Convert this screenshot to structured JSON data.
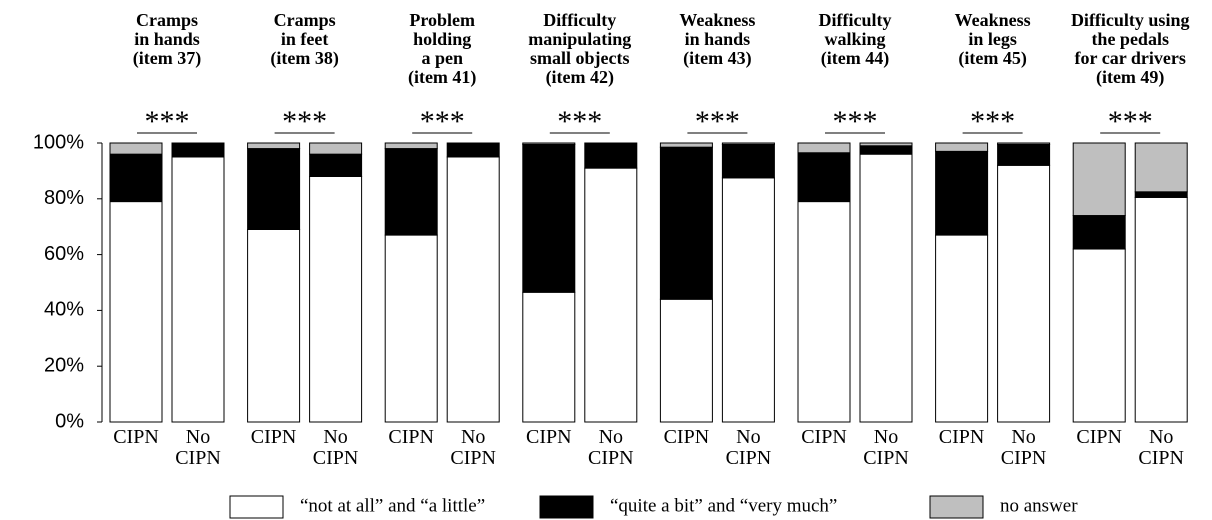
{
  "chart_data": {
    "type": "stacked_bar",
    "ylim": [
      0,
      100
    ],
    "yticks": [
      {
        "value": 0,
        "label": "0%"
      },
      {
        "value": 20,
        "label": "20%"
      },
      {
        "value": 40,
        "label": "40%"
      },
      {
        "value": 60,
        "label": "60%"
      },
      {
        "value": 80,
        "label": "80%"
      },
      {
        "value": 100,
        "label": "100%"
      }
    ],
    "legend": "bottom",
    "series": [
      {
        "name": "“not at all” and “a little”",
        "color": "#ffffff"
      },
      {
        "name": "“quite a bit” and “very much”",
        "color": "#000000"
      },
      {
        "name": "no answer",
        "color": "#bfbfbf"
      }
    ],
    "panels": [
      {
        "title": [
          "Cramps",
          "in hands",
          "(item 37)"
        ],
        "annotation": "***",
        "categories": [
          "CIPN",
          "No CIPN"
        ],
        "series": [
          {
            "values": [
              79,
              95
            ]
          },
          {
            "values": [
              17,
              5
            ]
          },
          {
            "values": [
              4,
              0
            ]
          }
        ]
      },
      {
        "title": [
          "Cramps",
          "in feet",
          "(item 38)"
        ],
        "annotation": "***",
        "categories": [
          "CIPN",
          "No CIPN"
        ],
        "series": [
          {
            "values": [
              69,
              88
            ]
          },
          {
            "values": [
              29,
              8
            ]
          },
          {
            "values": [
              2,
              4
            ]
          }
        ]
      },
      {
        "title": [
          "Problem",
          "holding",
          "a pen",
          "(item 41)"
        ],
        "annotation": "***",
        "categories": [
          "CIPN",
          "No CIPN"
        ],
        "series": [
          {
            "values": [
              67,
              95
            ]
          },
          {
            "values": [
              31,
              5
            ]
          },
          {
            "values": [
              2,
              0
            ]
          }
        ]
      },
      {
        "title": [
          "Difficulty",
          "manipulating",
          "small objects",
          "(item 42)"
        ],
        "annotation": "***",
        "categories": [
          "CIPN",
          "No CIPN"
        ],
        "series": [
          {
            "values": [
              46.5,
              91
            ]
          },
          {
            "values": [
              53,
              9
            ]
          },
          {
            "values": [
              0.5,
              0
            ]
          }
        ]
      },
      {
        "title": [
          "Weakness",
          "in hands",
          "(item 43)"
        ],
        "annotation": "***",
        "categories": [
          "CIPN",
          "No CIPN"
        ],
        "series": [
          {
            "values": [
              44,
              87.5
            ]
          },
          {
            "values": [
              54.5,
              12
            ]
          },
          {
            "values": [
              1.5,
              0.5
            ]
          }
        ]
      },
      {
        "title": [
          "Difficulty",
          "walking",
          "(item 44)"
        ],
        "annotation": "***",
        "categories": [
          "CIPN",
          "No CIPN"
        ],
        "series": [
          {
            "values": [
              79,
              96
            ]
          },
          {
            "values": [
              17.5,
              3
            ]
          },
          {
            "values": [
              3.5,
              1
            ]
          }
        ]
      },
      {
        "title": [
          "Weakness",
          "in legs",
          "(item 45)"
        ],
        "annotation": "***",
        "categories": [
          "CIPN",
          "No CIPN"
        ],
        "series": [
          {
            "values": [
              67,
              92
            ]
          },
          {
            "values": [
              30,
              7.5
            ]
          },
          {
            "values": [
              3,
              0.5
            ]
          }
        ]
      },
      {
        "title": [
          "Difficulty using",
          "the pedals",
          "for car drivers",
          "(item 49)"
        ],
        "annotation": "***",
        "categories": [
          "CIPN",
          "No CIPN"
        ],
        "series": [
          {
            "values": [
              62,
              80.5
            ]
          },
          {
            "values": [
              12,
              2
            ]
          },
          {
            "values": [
              26,
              17.5
            ]
          }
        ]
      }
    ]
  }
}
